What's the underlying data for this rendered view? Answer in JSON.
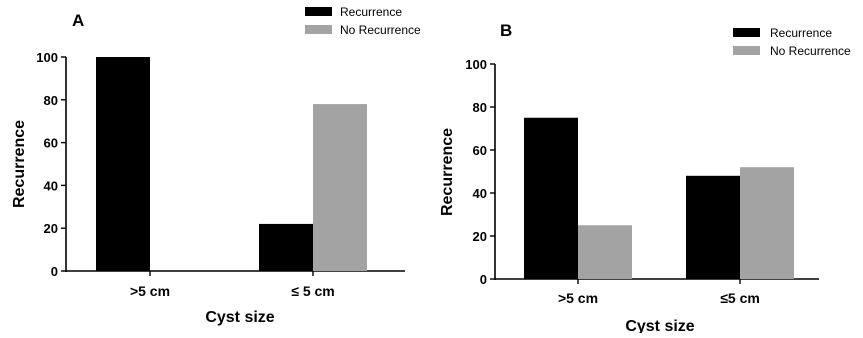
{
  "chart_data": [
    {
      "type": "bar",
      "panel": "A",
      "categories": [
        ">5 cm",
        "≤ 5 cm"
      ],
      "series": [
        {
          "name": "Recurrence",
          "color": "#000000",
          "values": [
            100,
            22
          ]
        },
        {
          "name": "No Recurrence",
          "color": "#a3a3a3",
          "values": [
            0,
            78
          ]
        }
      ],
      "xlabel": "Cyst size",
      "ylabel": "Recurrence",
      "ylim": [
        0,
        100
      ],
      "yticks": [
        "0",
        "20",
        "40",
        "60",
        "80",
        "100"
      ],
      "legend_position": "top-right",
      "grid": false
    },
    {
      "type": "bar",
      "panel": "B",
      "categories": [
        ">5 cm",
        "≤5 cm"
      ],
      "series": [
        {
          "name": "Recurrence",
          "color": "#000000",
          "values": [
            75,
            48
          ]
        },
        {
          "name": "No Recurrence",
          "color": "#a3a3a3",
          "values": [
            25,
            52
          ]
        }
      ],
      "xlabel": "Cyst size",
      "ylabel": "Recurrence",
      "ylim": [
        0,
        100
      ],
      "yticks": [
        "0",
        "20",
        "40",
        "60",
        "80",
        "100"
      ],
      "legend_position": "top-right",
      "grid": false
    }
  ]
}
